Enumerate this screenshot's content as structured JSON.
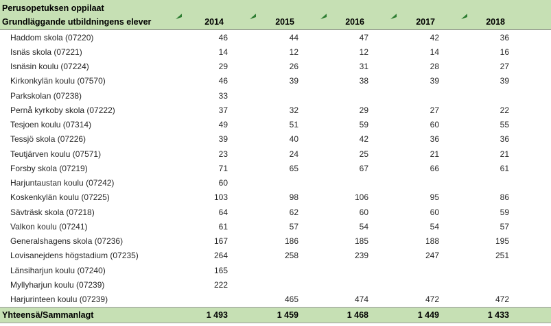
{
  "colors": {
    "header_bg": "#c6e0b4",
    "total_bg": "#c6e0b4",
    "flag_green": "#2e7d32",
    "header_border": "#808080",
    "total_border": "#9a9a9a"
  },
  "header": {
    "title_fi": "Perusopetuksen oppilaat",
    "title_sv": "Grundläggande utbildningens elever",
    "years": [
      "2014",
      "2015",
      "2016",
      "2017",
      "2018"
    ],
    "flag_icon": "green-corner-flag-icon"
  },
  "rows": [
    {
      "name": "Haddom skola (07220)",
      "values": [
        "46",
        "44",
        "47",
        "42",
        "36"
      ]
    },
    {
      "name": "Isnäs skola (07221)",
      "values": [
        "14",
        "12",
        "12",
        "14",
        "16"
      ]
    },
    {
      "name": "Isnäsin koulu (07224)",
      "values": [
        "29",
        "26",
        "31",
        "28",
        "27"
      ]
    },
    {
      "name": "Kirkonkylän koulu (07570)",
      "values": [
        "46",
        "39",
        "38",
        "39",
        "39"
      ]
    },
    {
      "name": "Parkskolan (07238)",
      "values": [
        "33",
        "",
        "",
        "",
        ""
      ]
    },
    {
      "name": "Pernå kyrkoby skola (07222)",
      "values": [
        "37",
        "32",
        "29",
        "27",
        "22"
      ]
    },
    {
      "name": "Tesjoen koulu (07314)",
      "values": [
        "49",
        "51",
        "59",
        "60",
        "55"
      ]
    },
    {
      "name": "Tessjö skola (07226)",
      "values": [
        "39",
        "40",
        "42",
        "36",
        "36"
      ]
    },
    {
      "name": "Teutjärven koulu (07571)",
      "values": [
        "23",
        "24",
        "25",
        "21",
        "21"
      ]
    },
    {
      "name": "Forsby skola (07219)",
      "values": [
        "71",
        "65",
        "67",
        "66",
        "61"
      ]
    },
    {
      "name": "Harjuntaustan koulu (07242)",
      "values": [
        "60",
        "",
        "",
        "",
        ""
      ]
    },
    {
      "name": "Koskenkylän koulu (07225)",
      "values": [
        "103",
        "98",
        "106",
        "95",
        "86"
      ]
    },
    {
      "name": "Sävträsk skola (07218)",
      "values": [
        "64",
        "62",
        "60",
        "60",
        "59"
      ]
    },
    {
      "name": "Valkon koulu (07241)",
      "values": [
        "61",
        "57",
        "54",
        "54",
        "57"
      ]
    },
    {
      "name": "Generalshagens skola (07236)",
      "values": [
        "167",
        "186",
        "185",
        "188",
        "195"
      ]
    },
    {
      "name": "Lovisanejdens högstadium (07235)",
      "values": [
        "264",
        "258",
        "239",
        "247",
        "251"
      ]
    },
    {
      "name": "Länsiharjun koulu (07240)",
      "values": [
        "165",
        "",
        "",
        "",
        ""
      ]
    },
    {
      "name": "Myllyharjun koulu (07239)",
      "values": [
        "222",
        "",
        "",
        "",
        ""
      ]
    },
    {
      "name": "Harjurinteen koulu (07239)",
      "values": [
        "",
        "465",
        "474",
        "472",
        "472"
      ]
    }
  ],
  "total": {
    "label": "Yhteensä/Sammanlagt",
    "values": [
      "1 493",
      "1 459",
      "1 468",
      "1 449",
      "1 433"
    ]
  }
}
